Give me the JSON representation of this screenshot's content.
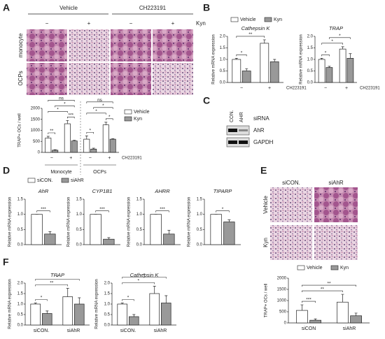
{
  "figure": {
    "A": {
      "label": "A",
      "columns": [
        "Vehicle",
        "CH223191"
      ],
      "treatment": "Kyn",
      "signs": [
        "−",
        "+",
        "−",
        "+"
      ],
      "rows": [
        "monocyte",
        "OCPs"
      ]
    },
    "B": {
      "label": "B"
    },
    "C": {
      "label": "C",
      "lanes": [
        "CON.",
        "AHR"
      ],
      "lane_title": "siRNA",
      "bands": [
        "AhR",
        "GAPDH"
      ]
    },
    "D": {
      "label": "D"
    },
    "E": {
      "label": "E",
      "columns": [
        "siCON.",
        "siAhR"
      ],
      "rows": [
        "Vehicle",
        "Kyn"
      ]
    },
    "F": {
      "label": "F"
    }
  },
  "chart_data": [
    {
      "type": "bar",
      "ylabel": "TRAP+ OCs / well",
      "categories": [
        "−",
        "+",
        "−",
        "+"
      ],
      "groups": [
        "Monocyte",
        "OCPs"
      ],
      "xnote": "CH223191",
      "legend": "right",
      "series": [
        {
          "name": "Vehicle",
          "color": "#ffffff",
          "values": [
            650,
            1300,
            600,
            1250
          ],
          "errors": [
            80,
            150,
            150,
            120
          ]
        },
        {
          "name": "Kyn",
          "color": "#999999",
          "values": [
            100,
            520,
            150,
            600
          ],
          "errors": [
            20,
            30,
            40,
            20
          ]
        }
      ],
      "ylim": [
        0,
        2000
      ],
      "yticks": [
        0,
        500,
        1000,
        1500,
        2000
      ],
      "significance": [
        {
          "label": "**",
          "between": [
            0,
            1
          ]
        },
        {
          "label": "***",
          "between": [
            2,
            3
          ]
        },
        {
          "label": "*",
          "between": [
            0,
            2
          ]
        },
        {
          "label": "*",
          "between": [
            1,
            3
          ]
        },
        {
          "label": "ns",
          "between": [
            0,
            3
          ]
        },
        {
          "label": "*",
          "between": [
            4,
            5
          ]
        },
        {
          "label": "*",
          "between": [
            6,
            7
          ]
        },
        {
          "label": "*",
          "between": [
            4,
            6
          ]
        },
        {
          "label": "*",
          "between": [
            5,
            7
          ]
        },
        {
          "label": "ns",
          "between": [
            4,
            7
          ]
        }
      ]
    },
    {
      "type": "bar",
      "title": "Cathepsin K",
      "ylabel": "Relative mRNA expression",
      "categories": [
        "−",
        "+"
      ],
      "xnote": "CH223191",
      "legend": "top",
      "series": [
        {
          "name": "Vehicle",
          "color": "#ffffff",
          "values": [
            1.0,
            1.7
          ],
          "errors": [
            0.05,
            0.15
          ]
        },
        {
          "name": "Kyn",
          "color": "#999999",
          "values": [
            0.5,
            0.9
          ],
          "errors": [
            0.1,
            0.1
          ]
        }
      ],
      "ylim": [
        0,
        2.0
      ],
      "yticks": [
        {
          "value": 0,
          "label": "0.0"
        },
        0.5,
        {
          "value": 1,
          "label": "1.0"
        },
        1.5,
        {
          "value": 2,
          "label": "2.0"
        }
      ],
      "significance": [
        {
          "label": "*",
          "between": [
            0,
            1
          ]
        },
        {
          "label": "**",
          "between": [
            0,
            2
          ]
        }
      ]
    },
    {
      "type": "bar",
      "title": "TRAP",
      "ylabel": "Relative mRNA expression",
      "categories": [
        "−",
        "+"
      ],
      "xnote": "CH223191",
      "series": [
        {
          "color": "#ffffff",
          "values": [
            1.0,
            1.45
          ],
          "errors": [
            0.05,
            0.1
          ]
        },
        {
          "color": "#999999",
          "values": [
            0.65,
            1.05
          ],
          "errors": [
            0.05,
            0.2
          ]
        }
      ],
      "ylim": [
        0,
        2.0
      ],
      "yticks": [
        {
          "value": 0,
          "label": "0.0"
        },
        0.5,
        {
          "value": 1,
          "label": "1.0"
        },
        1.5,
        {
          "value": 2,
          "label": "2.0"
        }
      ],
      "significance": [
        {
          "label": "*",
          "between": [
            0,
            1
          ]
        },
        {
          "label": "*",
          "between": [
            0,
            2
          ]
        },
        {
          "label": "*",
          "between": [
            1,
            3
          ]
        }
      ]
    },
    {
      "type": "bar",
      "title": "AhR",
      "ylabel": "Relative mRNA expression",
      "categories": [
        null
      ],
      "legend": "top",
      "series": [
        {
          "name": "siCON.",
          "color": "#ffffff",
          "values": [
            1.0
          ],
          "errors": [
            0
          ]
        },
        {
          "name": "siAhR",
          "color": "#999999",
          "values": [
            0.35
          ],
          "errors": [
            0.08
          ]
        }
      ],
      "ylim": [
        0,
        1.5
      ],
      "yticks": [
        {
          "value": 0,
          "label": "0.0"
        },
        0.5,
        {
          "value": 1,
          "label": "1.0"
        },
        1.5
      ],
      "significance": [
        {
          "label": "***",
          "between": [
            0,
            1
          ]
        }
      ]
    },
    {
      "type": "bar",
      "title": "CYP1B1",
      "ylabel": "Relative mRNA expression",
      "categories": [
        null
      ],
      "series": [
        {
          "color": "#ffffff",
          "values": [
            1.0
          ],
          "errors": [
            0
          ]
        },
        {
          "color": "#999999",
          "values": [
            0.18
          ],
          "errors": [
            0.05
          ]
        }
      ],
      "ylim": [
        0,
        1.5
      ],
      "yticks": [
        {
          "value": 0,
          "label": "0.0"
        },
        0.5,
        {
          "value": 1,
          "label": "1.0"
        },
        1.5
      ],
      "significance": [
        {
          "label": "***",
          "between": [
            0,
            1
          ]
        }
      ]
    },
    {
      "type": "bar",
      "title": "AHRR",
      "ylabel": "Relative mRNA expression",
      "categories": [
        null
      ],
      "series": [
        {
          "color": "#ffffff",
          "values": [
            1.0
          ],
          "errors": [
            0
          ]
        },
        {
          "color": "#999999",
          "values": [
            0.35
          ],
          "errors": [
            0.12
          ]
        }
      ],
      "ylim": [
        0,
        1.5
      ],
      "yticks": [
        {
          "value": 0,
          "label": "0.0"
        },
        0.5,
        {
          "value": 1,
          "label": "1.0"
        },
        1.5
      ],
      "significance": [
        {
          "label": "***",
          "between": [
            0,
            1
          ]
        }
      ]
    },
    {
      "type": "bar",
      "title": "TIPARP",
      "ylabel": "Relative mRNA expression",
      "categories": [
        null
      ],
      "series": [
        {
          "color": "#ffffff",
          "values": [
            1.0
          ],
          "errors": [
            0
          ]
        },
        {
          "color": "#999999",
          "values": [
            0.75
          ],
          "errors": [
            0.07
          ]
        }
      ],
      "ylim": [
        0,
        1.5
      ],
      "yticks": [
        {
          "value": 0,
          "label": "0.0"
        },
        0.5,
        {
          "value": 1,
          "label": "1.0"
        },
        1.5
      ],
      "significance": [
        {
          "label": "*",
          "between": [
            0,
            1
          ]
        }
      ]
    },
    {
      "type": "bar",
      "ylabel": "TRAP+ OCs / well",
      "categories": [
        "siCON",
        "siAhR"
      ],
      "legend": "top",
      "series": [
        {
          "name": "Vehicle",
          "color": "#ffffff",
          "values": [
            560,
            930
          ],
          "errors": [
            250,
            350
          ]
        },
        {
          "name": "Kyn",
          "color": "#999999",
          "values": [
            120,
            320
          ],
          "errors": [
            60,
            120
          ]
        }
      ],
      "ylim": [
        0,
        2000
      ],
      "yticks": [
        0,
        500,
        1000,
        1500,
        2000
      ],
      "significance": [
        {
          "label": "***",
          "between": [
            0,
            1
          ]
        },
        {
          "label": "**",
          "between": [
            0,
            2
          ]
        },
        {
          "label": "**",
          "between": [
            0,
            3
          ]
        }
      ]
    },
    {
      "type": "bar",
      "title": "TRAP",
      "ylabel": "Relative mRNA expression",
      "categories": [
        "siCON.",
        "siAhR"
      ],
      "series": [
        {
          "color": "#ffffff",
          "values": [
            1.0,
            1.35
          ],
          "errors": [
            0.05,
            0.4
          ]
        },
        {
          "color": "#999999",
          "values": [
            0.55,
            1.0
          ],
          "errors": [
            0.12,
            0.3
          ]
        }
      ],
      "ylim": [
        0,
        2.0
      ],
      "yticks": [
        {
          "value": 0,
          "label": "0.0"
        },
        0.5,
        {
          "value": 1,
          "label": "1.0"
        },
        1.5,
        {
          "value": 2,
          "label": "2.0"
        }
      ],
      "significance": [
        {
          "label": "*",
          "between": [
            0,
            1
          ]
        },
        {
          "label": "**",
          "between": [
            0,
            2
          ]
        },
        {
          "label": "*",
          "between": [
            0,
            3
          ]
        }
      ]
    },
    {
      "type": "bar",
      "title": "Cathepsin K",
      "ylabel": "Relative mRNA expression",
      "categories": [
        "siCON.",
        "siAhR"
      ],
      "series": [
        {
          "color": "#ffffff",
          "values": [
            1.0,
            1.5
          ],
          "errors": [
            0.05,
            0.35
          ]
        },
        {
          "color": "#999999",
          "values": [
            0.4,
            1.05
          ],
          "errors": [
            0.1,
            0.35
          ]
        }
      ],
      "ylim": [
        0,
        2.0
      ],
      "yticks": [
        {
          "value": 0,
          "label": "0.0"
        },
        0.5,
        {
          "value": 1,
          "label": "1.0"
        },
        1.5,
        {
          "value": 2,
          "label": "2.0"
        }
      ],
      "significance": [
        {
          "label": "*",
          "between": [
            0,
            1
          ]
        },
        {
          "label": "*",
          "between": [
            0,
            2
          ]
        },
        {
          "label": "*",
          "between": [
            0,
            3
          ]
        }
      ]
    }
  ]
}
